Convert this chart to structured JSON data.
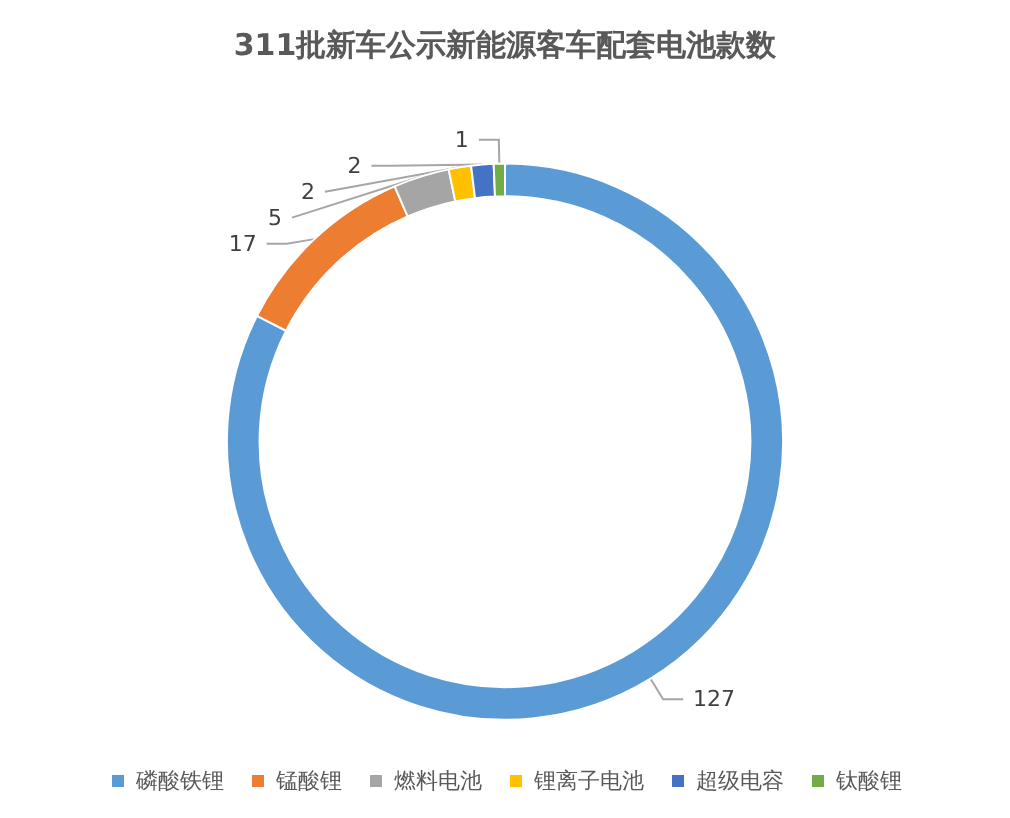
{
  "chart_data": {
    "type": "donut",
    "title": "311批新车公示新能源客车配套电池款数",
    "categories": [
      "磷酸铁锂",
      "锰酸锂",
      "燃料电池",
      "锂离子电池",
      "超级电容",
      "钛酸锂"
    ],
    "values": [
      127,
      17,
      5,
      2,
      2,
      1
    ],
    "colors": [
      "#5b9bd5",
      "#ed7d31",
      "#a5a5a5",
      "#ffc000",
      "#4472c4",
      "#70ad47"
    ],
    "data_labels": true,
    "legend": "bottom"
  }
}
